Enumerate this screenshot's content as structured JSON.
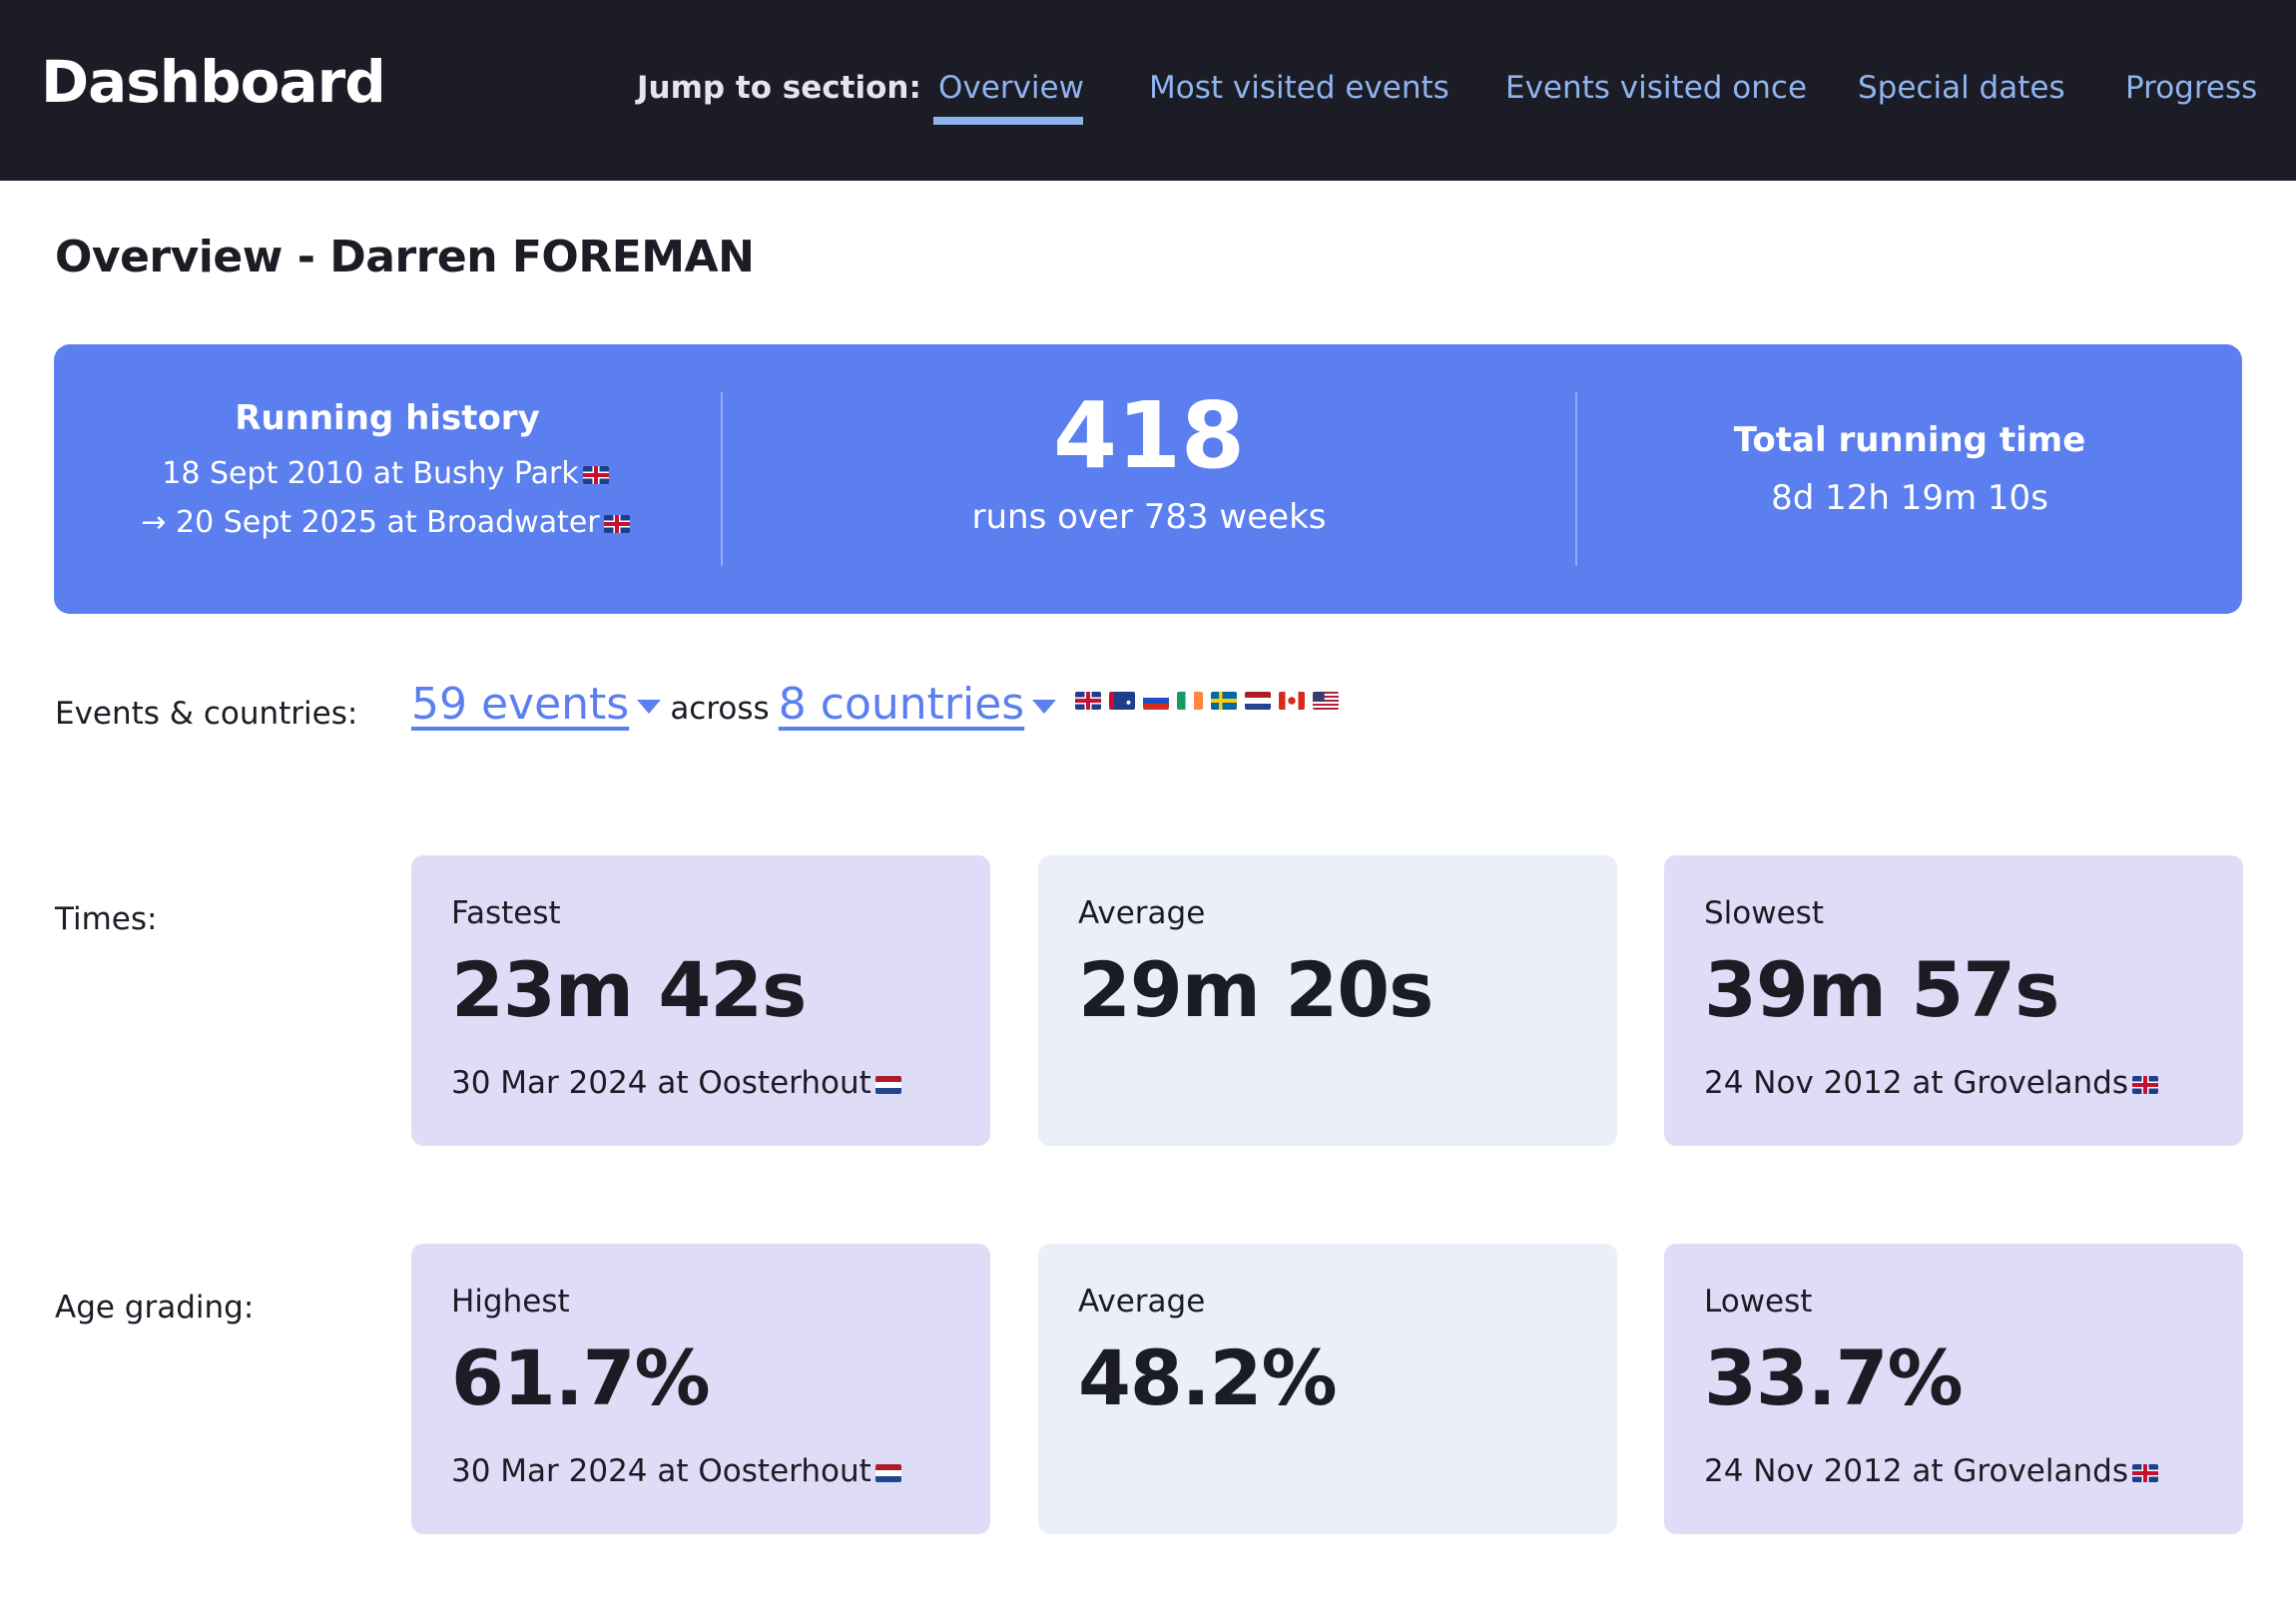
{
  "header": {
    "title": "Dashboard",
    "jump_label": "Jump to section:",
    "nav": [
      {
        "label": "Overview",
        "active": true
      },
      {
        "label": "Most visited events"
      },
      {
        "label": "Events visited once"
      },
      {
        "label": "Special dates"
      },
      {
        "label": "Progress"
      }
    ]
  },
  "page_title": "Overview - Darren FOREMAN",
  "banner": {
    "history_title": "Running history",
    "history_start": "18 Sept 2010 at Bushy Park",
    "history_start_flag": "gb",
    "history_end": "→ 20 Sept 2025 at Broadwater",
    "history_end_flag": "gb",
    "runs": "418",
    "runs_sub": "runs over 783 weeks",
    "time_title": "Total running time",
    "time_value": "8d 12h 19m 10s"
  },
  "events": {
    "label": "Events & countries:",
    "events_link": "59 events",
    "across": "across",
    "countries_link": "8 countries",
    "flags": [
      "gb",
      "au",
      "ru",
      "ie",
      "se",
      "nl",
      "ca",
      "us"
    ]
  },
  "times": {
    "label": "Times:",
    "cards": [
      {
        "label": "Fastest",
        "value": "23m 42s",
        "sub": "30 Mar 2024 at Oosterhout",
        "flag": "nl"
      },
      {
        "label": "Average",
        "value": "29m 20s",
        "sub": "",
        "flag": ""
      },
      {
        "label": "Slowest",
        "value": "39m 57s",
        "sub": "24 Nov 2012 at Grovelands",
        "flag": "gb"
      }
    ]
  },
  "age": {
    "label": "Age grading:",
    "cards": [
      {
        "label": "Highest",
        "value": "61.7%",
        "sub": "30 Mar 2024 at Oosterhout",
        "flag": "nl"
      },
      {
        "label": "Average",
        "value": "48.2%",
        "sub": "",
        "flag": ""
      },
      {
        "label": "Lowest",
        "value": "33.7%",
        "sub": "24 Nov 2012 at Grovelands",
        "flag": "gb"
      }
    ]
  },
  "colors": {
    "header_bg": "#1b1c26",
    "accent": "#5b7fee",
    "nav_link": "#8fb4ee",
    "card_side": "#dedcf6",
    "card_mid": "#ebeff9"
  }
}
